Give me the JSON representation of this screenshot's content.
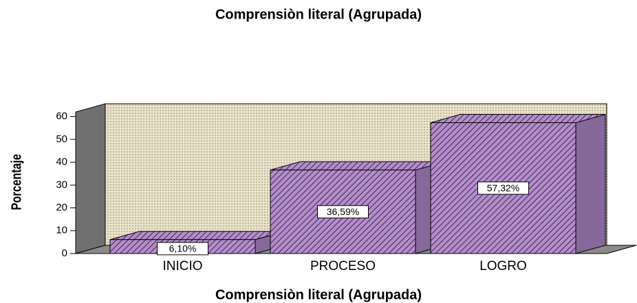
{
  "chart_data": {
    "type": "bar3d",
    "title": "Comprensiòn literal (Agrupada)",
    "xlabel": "Comprensiòn literal (Agrupada)",
    "ylabel": "Porcentaje",
    "categories": [
      "INICIO",
      "PROCESO",
      "LOGRO"
    ],
    "values": [
      6.1,
      36.59,
      57.32
    ],
    "value_labels": [
      "6,10%",
      "36,59%",
      "57,32%"
    ],
    "color": "#b48ccc",
    "ylim": [
      0,
      62
    ],
    "yticks": [
      0,
      10,
      20,
      30,
      40,
      50,
      60
    ]
  }
}
